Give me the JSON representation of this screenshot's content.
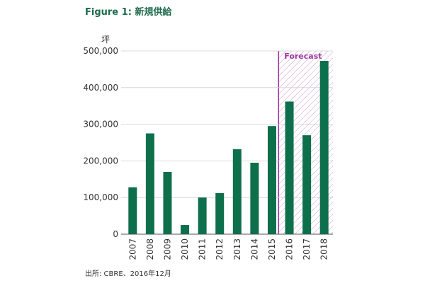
{
  "figure": {
    "title": "Figure 1: 新規供給",
    "source": "出所: CBRE、2016年12月"
  },
  "colors": {
    "bar": "#0e6f4c",
    "forecast_line": "#a03aa0",
    "hatch": "#d9a8d9",
    "grid": "#d0d0d0"
  },
  "chart_data": {
    "type": "bar",
    "title": "Figure 1: 新規供給",
    "ylabel": "坪",
    "xlabel": "",
    "categories": [
      "2007",
      "2008",
      "2009",
      "2010",
      "2011",
      "2012",
      "2013",
      "2014",
      "2015",
      "2016",
      "2017",
      "2018"
    ],
    "values": [
      128000,
      275000,
      170000,
      25000,
      100000,
      112000,
      232000,
      195000,
      295000,
      362000,
      270000,
      473000
    ],
    "ylim": [
      0,
      500000
    ],
    "yticks": [
      0,
      100000,
      200000,
      300000,
      400000,
      500000
    ],
    "ytick_labels": [
      "0",
      "100,000",
      "200,000",
      "300,000",
      "400,000",
      "500,000"
    ],
    "forecast": {
      "label": "Forecast",
      "start_category": "2016"
    },
    "grid": true
  }
}
